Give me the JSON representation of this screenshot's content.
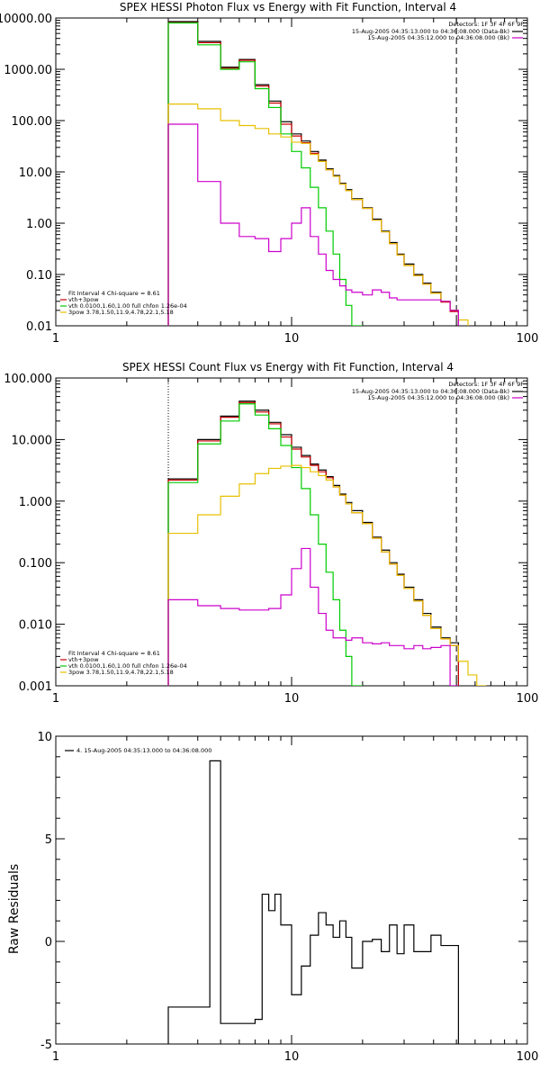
{
  "chart_data": [
    {
      "type": "line",
      "title": "SPEX HESSI Photon Flux vs Energy with Fit Function, Interval 4",
      "xscale": "log",
      "yscale": "log",
      "xlim": [
        1,
        100
      ],
      "ylim": [
        0.01,
        10000
      ],
      "x_ticks": [
        "1",
        "10",
        "100"
      ],
      "y_ticks": [
        "0.01",
        "0.10",
        "1.00",
        "10.00",
        "100.00",
        "1000.00",
        "10000.00"
      ],
      "detectors_label": "Detectors: 1F 3F 4F 6F 9F",
      "time_labels": [
        {
          "text": "15-Aug-2005 04:35:13.000 to 04:36:08.000 (Data-Bk)",
          "color": "#000000"
        },
        {
          "text": "15-Aug-2005 04:35:12.000 to 04:36:08.000 (Bk)",
          "color": "#cc00cc"
        }
      ],
      "fit_legend": [
        {
          "text": "Fit Interval 4   Chi-square = 8.61",
          "color": null
        },
        {
          "text": "vth+3pow",
          "color": "#cc0000"
        },
        {
          "text": "vth 0.0100,1.60,1.00  full chfon 1.26e-04",
          "color": "#00cc00"
        },
        {
          "text": "3pow 3.78,1.50,11.9,4.78,22.1,5.18",
          "color": "#e6c000"
        }
      ],
      "vlines": [
        {
          "x": 3.0,
          "style": "dotted"
        },
        {
          "x": 50,
          "style": "dashed"
        }
      ],
      "bin_edges": [
        3.0,
        4.0,
        5.0,
        6.0,
        7.0,
        8.0,
        9.0,
        10.0,
        11.0,
        12.0,
        13.0,
        14.0,
        15.0,
        16.0,
        17.0,
        18.0,
        20.0,
        22.0,
        24.0,
        26.0,
        28.0,
        30.0,
        33.0,
        36.0,
        39.0,
        43.0,
        47.0,
        51.0,
        56.0,
        61.0
      ],
      "series": [
        {
          "name": "Data-Bk",
          "color": "#000000",
          "start_bin": 0,
          "values": [
            8500,
            3500,
            1100,
            1550,
            500,
            240,
            95,
            55,
            40,
            25,
            17,
            11.5,
            8.5,
            6.0,
            4.5,
            3.0,
            2.0,
            1.2,
            0.7,
            0.42,
            0.25,
            0.16,
            0.1,
            0.068,
            0.045,
            0.03,
            0.02
          ]
        },
        {
          "name": "vth+3pow",
          "color": "#cc0000",
          "start_bin": 0,
          "values": [
            8200,
            3300,
            1050,
            1500,
            470,
            220,
            85,
            50,
            37,
            23,
            16,
            11,
            8.2,
            5.8,
            4.3,
            2.9,
            1.95,
            1.15,
            0.68,
            0.4,
            0.24,
            0.15,
            0.095,
            0.065,
            0.043,
            0.029,
            0.019
          ]
        },
        {
          "name": "vth",
          "color": "#00cc00",
          "start_bin": 0,
          "values": [
            8000,
            3000,
            1000,
            1400,
            420,
            180,
            55,
            25,
            12,
            5.0,
            2.0,
            0.7,
            0.25,
            0.08,
            0.025,
            0.01
          ]
        },
        {
          "name": "3pow",
          "color": "#e6c000",
          "start_bin": 0,
          "values": [
            210,
            170,
            100,
            80,
            70,
            55,
            48,
            38,
            36,
            22,
            16,
            11,
            8.2,
            5.8,
            4.3,
            2.9,
            1.95,
            1.15,
            0.68,
            0.4,
            0.24,
            0.15,
            0.095,
            0.065,
            0.043,
            0.03,
            0.02,
            0.013,
            0.009
          ]
        },
        {
          "name": "Bk",
          "color": "#cc00cc",
          "start_bin": 0,
          "values": [
            85,
            6.5,
            1.0,
            0.55,
            0.5,
            0.28,
            0.5,
            1.0,
            2.0,
            0.55,
            0.25,
            0.12,
            0.08,
            0.06,
            0.05,
            0.045,
            0.04,
            0.05,
            0.045,
            0.035,
            0.032,
            0.032,
            0.032,
            0.032,
            0.032,
            0.03,
            0.02
          ]
        }
      ]
    },
    {
      "type": "line",
      "title": "SPEX HESSI Count Flux vs Energy with Fit Function, Interval 4",
      "xscale": "log",
      "yscale": "log",
      "xlim": [
        1,
        100
      ],
      "ylim": [
        0.001,
        100
      ],
      "x_ticks": [
        "1",
        "10",
        "100"
      ],
      "y_ticks": [
        "0.001",
        "0.010",
        "0.100",
        "1.000",
        "10.000",
        "100.000"
      ],
      "detectors_label": "Detectors: 1F 3F 4F 6F 9F",
      "time_labels": [
        {
          "text": "15-Aug-2005 04:35:13.000 to 04:36:08.000 (Data-Bk)",
          "color": "#000000"
        },
        {
          "text": "15-Aug-2005 04:35:12.000 to 04:36:08.000 (Bk)",
          "color": "#cc00cc"
        }
      ],
      "fit_legend": [
        {
          "text": "Fit Interval 4   Chi-square = 8.61",
          "color": null
        },
        {
          "text": "vth+3pow",
          "color": "#cc0000"
        },
        {
          "text": "vth 0.0100,1.60,1.00  full chfon 1.26e-04",
          "color": "#00cc00"
        },
        {
          "text": "3pow 3.78,1.50,11.9,4.78,22.1,5.18",
          "color": "#e6c000"
        }
      ],
      "vlines": [
        {
          "x": 3.0,
          "style": "dotted"
        },
        {
          "x": 50,
          "style": "dashed"
        }
      ],
      "bin_edges": [
        3.0,
        4.0,
        5.0,
        6.0,
        7.0,
        8.0,
        9.0,
        10.0,
        11.0,
        12.0,
        13.0,
        14.0,
        15.0,
        16.0,
        17.0,
        18.0,
        20.0,
        22.0,
        24.0,
        26.0,
        28.0,
        30.0,
        33.0,
        36.0,
        39.0,
        43.0,
        47.0,
        51.0,
        56.0,
        61.0,
        67.0
      ],
      "series": [
        {
          "name": "Data-Bk",
          "color": "#000000",
          "start_bin": 0,
          "values": [
            2.3,
            10,
            24,
            42,
            30,
            19,
            12,
            7.5,
            5.5,
            4.0,
            3.2,
            2.5,
            1.8,
            1.3,
            0.95,
            0.7,
            0.45,
            0.26,
            0.16,
            0.1,
            0.065,
            0.04,
            0.025,
            0.015,
            0.009,
            0.006,
            0.005
          ]
        },
        {
          "name": "vth+3pow",
          "color": "#cc0000",
          "start_bin": 0,
          "values": [
            2.2,
            9.5,
            23,
            40,
            28,
            18,
            11,
            7.0,
            5.2,
            3.8,
            3.0,
            2.4,
            1.7,
            1.25,
            0.9,
            0.65,
            0.43,
            0.25,
            0.15,
            0.095,
            0.062,
            0.038,
            0.024,
            0.014,
            0.0085,
            0.0058,
            0.0045
          ]
        },
        {
          "name": "vth",
          "color": "#00cc00",
          "start_bin": 0,
          "values": [
            2.0,
            8.5,
            20,
            38,
            25,
            15,
            8.0,
            3.5,
            1.6,
            0.6,
            0.2,
            0.07,
            0.025,
            0.008,
            0.003,
            0.001
          ]
        },
        {
          "name": "3pow",
          "color": "#e6c000",
          "start_bin": 0,
          "values": [
            0.3,
            0.6,
            1.2,
            1.9,
            2.8,
            3.4,
            3.7,
            3.8,
            3.5,
            3.0,
            2.6,
            2.2,
            1.7,
            1.25,
            0.9,
            0.65,
            0.43,
            0.25,
            0.15,
            0.095,
            0.062,
            0.038,
            0.024,
            0.014,
            0.0085,
            0.0058,
            0.0045,
            0.0025,
            0.0015,
            0.001
          ]
        },
        {
          "name": "Bk",
          "color": "#cc00cc",
          "start_bin": 0,
          "values": [
            0.025,
            0.02,
            0.018,
            0.017,
            0.017,
            0.018,
            0.03,
            0.08,
            0.17,
            0.04,
            0.015,
            0.008,
            0.006,
            0.006,
            0.0055,
            0.006,
            0.005,
            0.0048,
            0.005,
            0.0045,
            0.0045,
            0.004,
            0.0045,
            0.004,
            0.0042,
            0.0045,
            0.001
          ]
        }
      ]
    },
    {
      "type": "line",
      "title": "",
      "ylabel": "Raw Residuals",
      "xscale": "log",
      "xlim": [
        1,
        100
      ],
      "ylim": [
        -5,
        10
      ],
      "x_ticks": [
        "1",
        "10",
        "100"
      ],
      "y_ticks": [
        "-5",
        "0",
        "5",
        "10"
      ],
      "legend": [
        {
          "text": "4. 15-Aug-2005 04:35:13.000 to 04:36:08.000",
          "color": "#000000"
        }
      ],
      "bin_edges": [
        3.0,
        4.0,
        4.5,
        5.0,
        6.0,
        7.0,
        7.5,
        8.0,
        8.5,
        9.0,
        10.0,
        11.0,
        12.0,
        13.0,
        14.0,
        15.0,
        16.0,
        17.0,
        18.0,
        20.0,
        22.0,
        24.0,
        26.0,
        28.0,
        30.0,
        33.0,
        36.0,
        39.0,
        43.0,
        47.0,
        51.0
      ],
      "series": [
        {
          "name": "Data-Bk",
          "color": "#000000",
          "start_bin": 0,
          "values": [
            -3.2,
            -3.2,
            8.8,
            -4.0,
            -4.0,
            -3.8,
            2.3,
            1.5,
            2.3,
            0.8,
            -2.6,
            -1.2,
            0.3,
            1.4,
            0.8,
            0.2,
            1.0,
            0.2,
            -1.3,
            0.0,
            0.1,
            -0.5,
            0.8,
            -0.6,
            0.8,
            -0.5,
            -0.5,
            0.3,
            -0.2,
            -0.2
          ]
        }
      ]
    }
  ]
}
